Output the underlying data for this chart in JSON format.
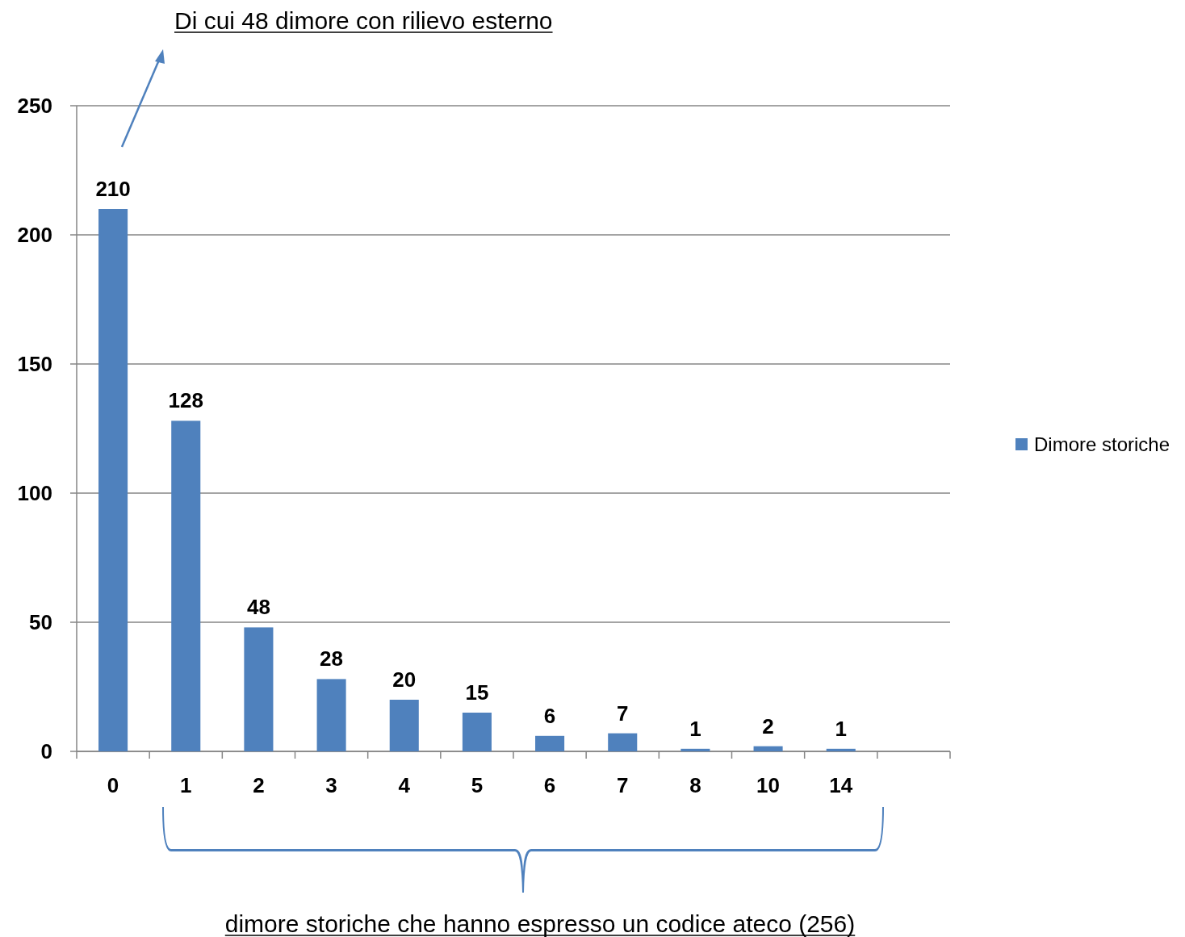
{
  "chart_data": {
    "type": "bar",
    "categories": [
      "0",
      "1",
      "2",
      "3",
      "4",
      "5",
      "6",
      "7",
      "8",
      "10",
      "14",
      null
    ],
    "series": [
      {
        "name": "Dimore storiche",
        "color": "#4f81bd",
        "values": [
          210,
          128,
          48,
          28,
          20,
          15,
          6,
          7,
          1,
          2,
          1,
          null
        ]
      }
    ],
    "ylim": [
      0,
      250
    ],
    "yticks": [
      0,
      50,
      100,
      150,
      200,
      250
    ],
    "grid": "y",
    "legend": "right",
    "data_labels": true,
    "annotations": [
      "Di cui 48 dimore con rilievo esterno",
      "dimore storiche che hanno espresso un codice ateco (256)"
    ]
  }
}
